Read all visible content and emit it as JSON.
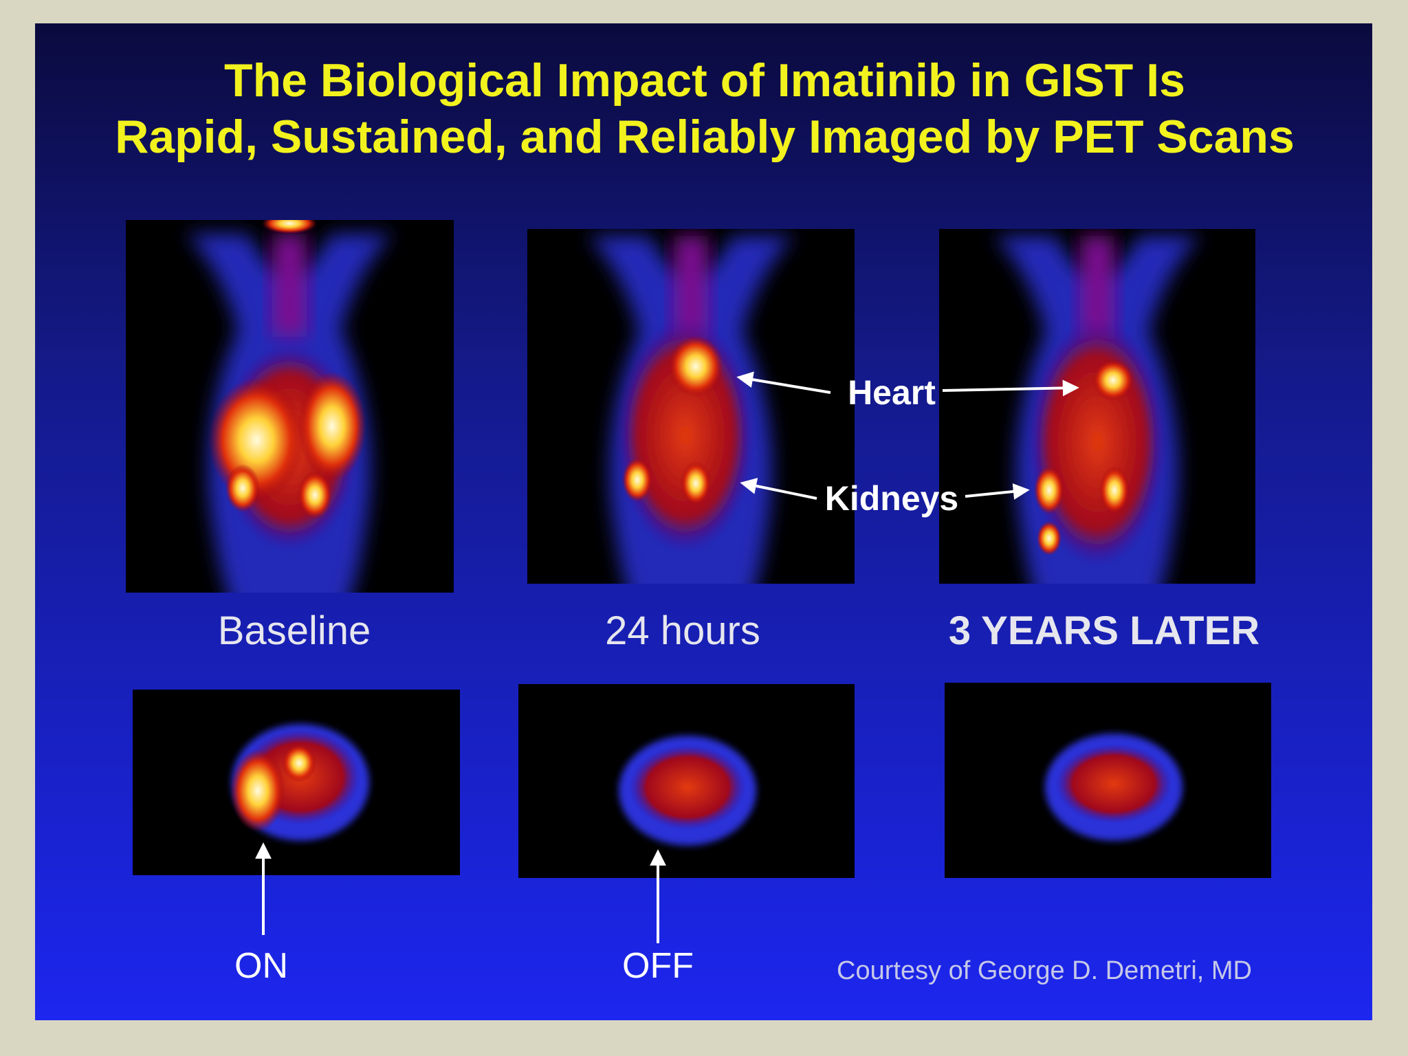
{
  "title": {
    "line1": "The Biological Impact of Imatinib in GIST Is",
    "line2": "Rapid, Sustained, and Reliably Imaged by PET Scans"
  },
  "panels": [
    {
      "label": "Baseline"
    },
    {
      "label": "24 hours"
    },
    {
      "label": "3 YEARS LATER"
    }
  ],
  "annotations": {
    "heart": "Heart",
    "kidneys": "Kidneys"
  },
  "markers": [
    "ON",
    "OFF"
  ],
  "credit": "Courtesy of George D. Demetri, MD"
}
